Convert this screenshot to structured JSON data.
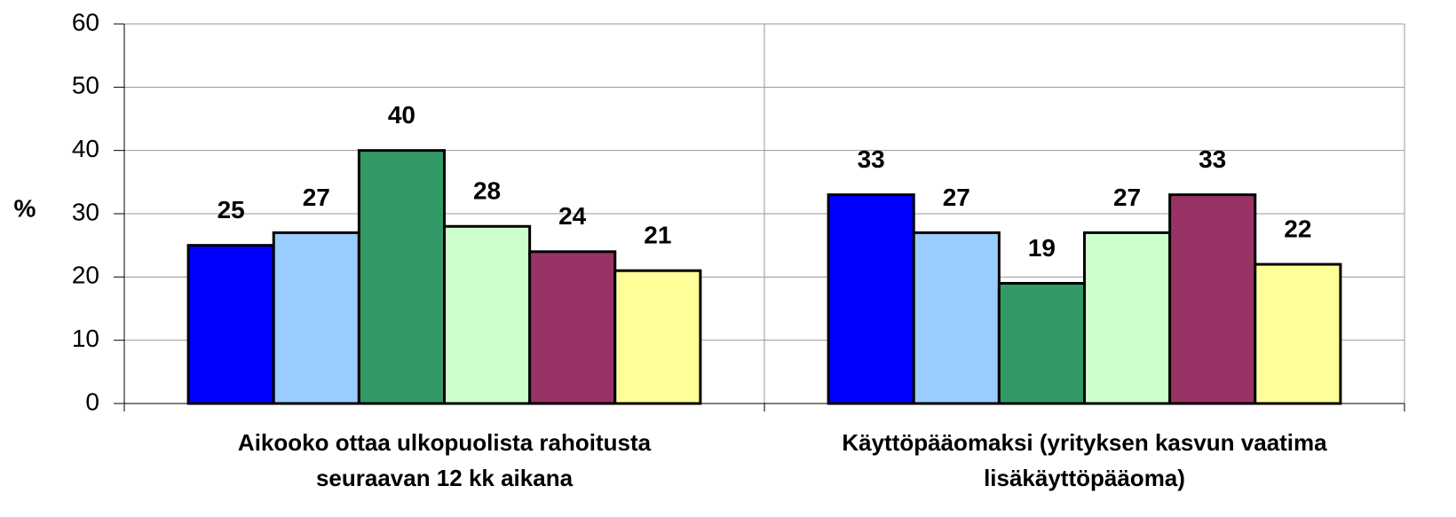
{
  "chart_data": {
    "type": "bar",
    "categories": [
      [
        "Aikooko ottaa ulkopuolista rahoitusta",
        "seuraavan 12 kk aikana"
      ],
      [
        "Käyttöpääomaksi (yrityksen kasvun vaatima",
        "lisäkäyttöpääoma)"
      ]
    ],
    "series": [
      {
        "color": "#0000ff",
        "values": [
          25,
          33
        ]
      },
      {
        "color": "#99ccff",
        "values": [
          27,
          27
        ]
      },
      {
        "color": "#339966",
        "values": [
          40,
          19
        ]
      },
      {
        "color": "#ccffcc",
        "values": [
          28,
          27
        ]
      },
      {
        "color": "#993366",
        "values": [
          24,
          33
        ]
      },
      {
        "color": "#ffff99",
        "values": [
          21,
          22
        ]
      }
    ],
    "ylabel": "%",
    "ylim": [
      0,
      60
    ],
    "yticks": [
      0,
      10,
      20,
      30,
      40,
      50,
      60
    ],
    "grid": true
  }
}
